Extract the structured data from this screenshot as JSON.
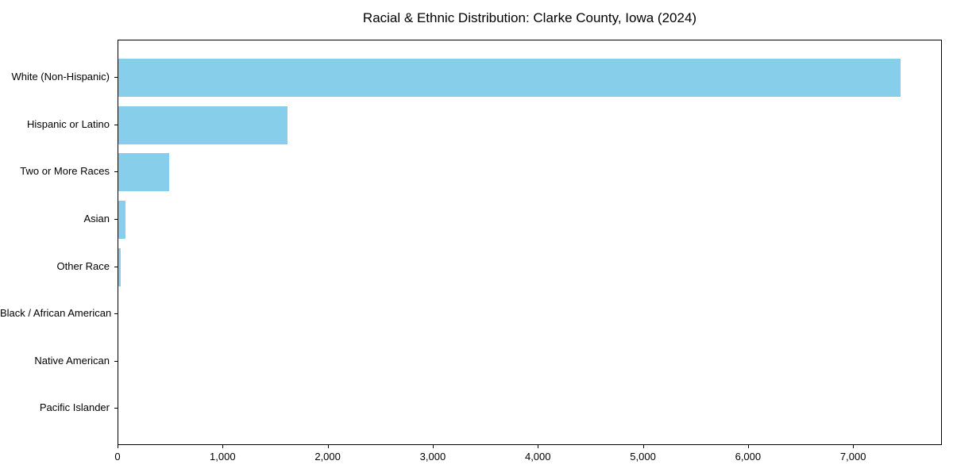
{
  "chart_data": {
    "type": "bar",
    "orientation": "horizontal",
    "title": "Racial & Ethnic Distribution: Clarke County, Iowa (2024)",
    "categories": [
      "White (Non-Hispanic)",
      "Hispanic or Latino",
      "Two or More Races",
      "Asian",
      "Other Race",
      "Black / African American",
      "Native American",
      "Pacific Islander"
    ],
    "values": [
      7460,
      1615,
      485,
      65,
      25,
      0,
      0,
      0
    ],
    "bar_color": "#87CEEB",
    "xlabel": "",
    "ylabel": "",
    "xlim": [
      0,
      7845
    ],
    "x_ticks": [
      0,
      1000,
      2000,
      3000,
      4000,
      5000,
      6000,
      7000
    ],
    "x_tick_labels": [
      "0",
      "1,000",
      "2,000",
      "3,000",
      "4,000",
      "5,000",
      "6,000",
      "7,000"
    ],
    "grid": false,
    "legend": "none",
    "frame": "full-box",
    "background_color": "#ffffff",
    "text_color": "#000000"
  }
}
